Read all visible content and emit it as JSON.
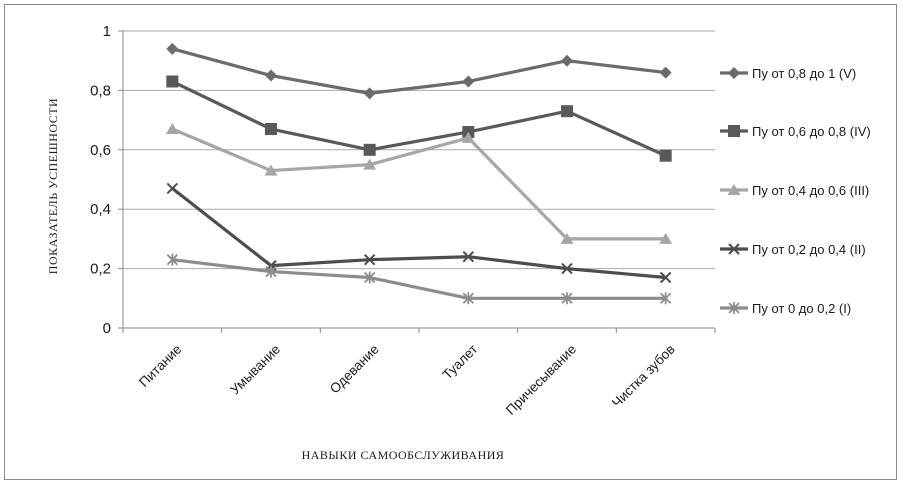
{
  "chart_data": {
    "type": "line",
    "title": "",
    "xlabel": "НАВЫКИ САМООБСЛУЖИВАНИЯ",
    "ylabel": "ПОКАЗАТЕЛЬ УСПЕШНОСТИ",
    "categories": [
      "Питание",
      "Умывание",
      "Одевание",
      "Туалет",
      "Причесывание",
      "Чистка зубов"
    ],
    "ylim": [
      0,
      1
    ],
    "yticks": [
      "0",
      "0,2",
      "0,4",
      "0,6",
      "0,8",
      "1"
    ],
    "grid": "horizontal",
    "legend_position": "right",
    "series": [
      {
        "name": "Пу от 0,8 до 1 (V)",
        "marker": "diamond",
        "color": "#6b6b6b",
        "values": [
          0.94,
          0.85,
          0.79,
          0.83,
          0.9,
          0.86
        ]
      },
      {
        "name": "Пу от 0,6 до 0,8 (IV)",
        "marker": "square",
        "color": "#595959",
        "values": [
          0.83,
          0.67,
          0.6,
          0.66,
          0.73,
          0.58
        ]
      },
      {
        "name": "Пу от 0,4 до 0,6 (III)",
        "marker": "triangle",
        "color": "#a6a6a6",
        "values": [
          0.67,
          0.53,
          0.55,
          0.64,
          0.3,
          0.3
        ]
      },
      {
        "name": "Пу от 0,2 до 0,4 (II)",
        "marker": "x",
        "color": "#4d4d4d",
        "values": [
          0.47,
          0.21,
          0.23,
          0.24,
          0.2,
          0.17
        ]
      },
      {
        "name": "Пу от 0 до 0,2 (I)",
        "marker": "star",
        "color": "#8c8c8c",
        "values": [
          0.23,
          0.19,
          0.17,
          0.1,
          0.1,
          0.1
        ]
      }
    ]
  }
}
